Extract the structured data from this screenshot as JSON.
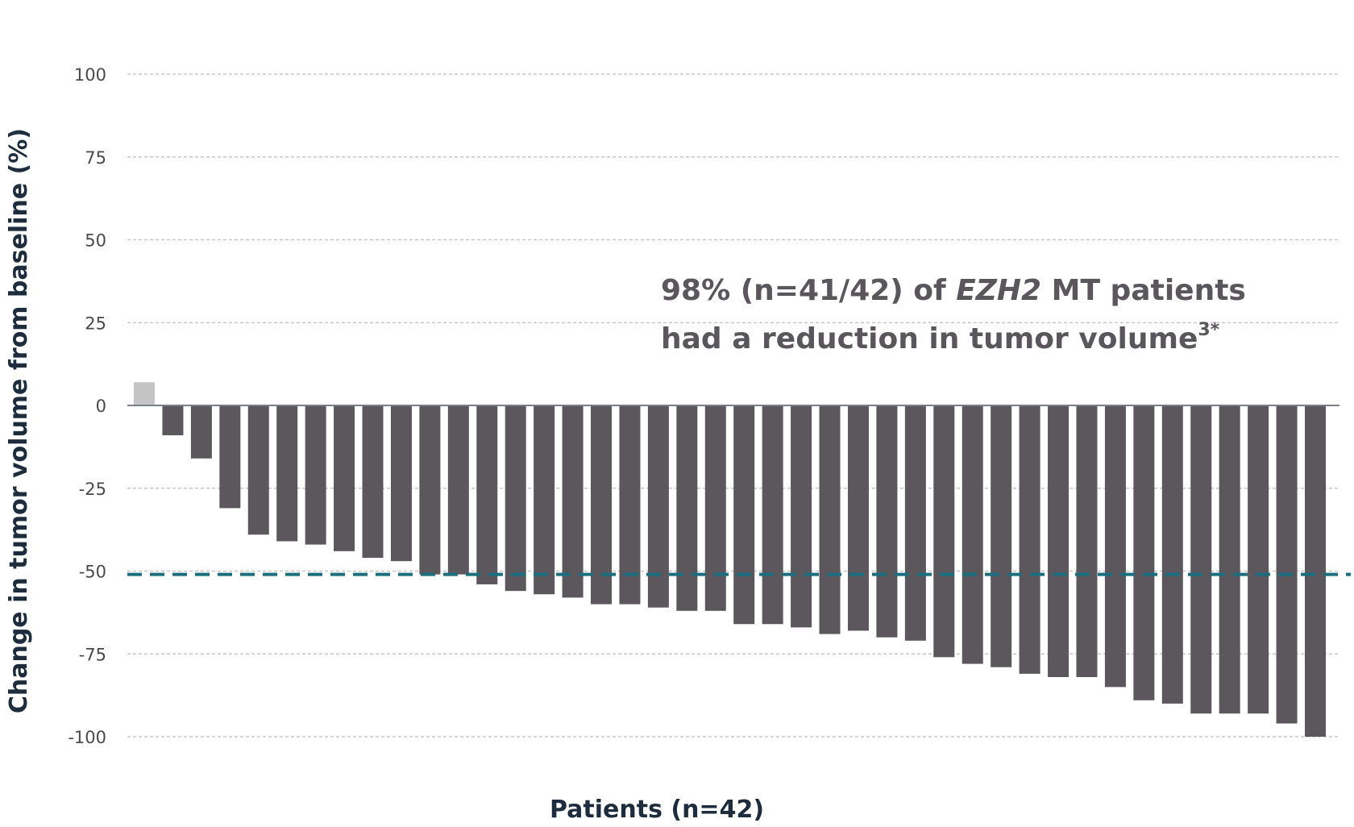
{
  "chart_data": {
    "type": "bar",
    "title": "",
    "xlabel": "Patients (n=42)",
    "ylabel": "Change in tumor volume from baseline (%)",
    "ylim": [
      -100,
      100
    ],
    "yticks": [
      "100",
      "75",
      "50",
      "25",
      "0",
      "-25",
      "-50",
      "-75",
      "-100"
    ],
    "grid": true,
    "reference_line": {
      "value": -51,
      "color": "#1a6e80",
      "style": "dashed"
    },
    "annotation": {
      "line1_prefix": "98% (n=41/42) of ",
      "line1_italic": "EZH2",
      "line1_suffix": " MT patients",
      "line2": "had a reduction in tumor volume",
      "line2_superscript": "3*"
    },
    "colors": {
      "bar": "#5b575d",
      "bar_positive": "#c4c4c4",
      "grid": "#bfbfbf",
      "zero_line": "#7a8087",
      "reference_line": "#1a6e80"
    },
    "values": [
      7,
      -9,
      -16,
      -31,
      -39,
      -41,
      -42,
      -44,
      -46,
      -47,
      -51,
      -51,
      -54,
      -56,
      -57,
      -58,
      -60,
      -60,
      -61,
      -62,
      -62,
      -66,
      -66,
      -67,
      -69,
      -68,
      -70,
      -71,
      -76,
      -78,
      -79,
      -81,
      -82,
      -82,
      -85,
      -89,
      -90,
      -93,
      -93,
      -93,
      -96,
      -100
    ]
  }
}
